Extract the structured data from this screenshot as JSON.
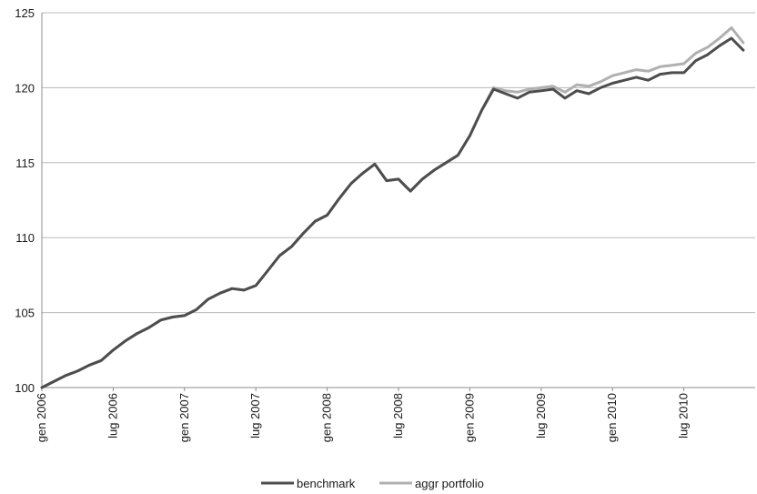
{
  "chart_data": {
    "type": "line",
    "title": "",
    "xlabel": "",
    "ylabel": "",
    "ylim": [
      100,
      125
    ],
    "yticks": [
      100,
      105,
      110,
      115,
      120,
      125
    ],
    "xlim": [
      "2006-01",
      "2010-12"
    ],
    "xtick_labels": [
      "gen 2006",
      "lug 2006",
      "gen 2007",
      "lug 2007",
      "gen 2008",
      "lug 2008",
      "gen 2009",
      "lug 2009",
      "gen 2010",
      "lug 2010"
    ],
    "grid": "horizontal",
    "legend": "bottom",
    "x": [
      "2006-01",
      "2006-02",
      "2006-03",
      "2006-04",
      "2006-05",
      "2006-06",
      "2006-07",
      "2006-08",
      "2006-09",
      "2006-10",
      "2006-11",
      "2006-12",
      "2007-01",
      "2007-02",
      "2007-03",
      "2007-04",
      "2007-05",
      "2007-06",
      "2007-07",
      "2007-08",
      "2007-09",
      "2007-10",
      "2007-11",
      "2007-12",
      "2008-01",
      "2008-02",
      "2008-03",
      "2008-04",
      "2008-05",
      "2008-06",
      "2008-07",
      "2008-08",
      "2008-09",
      "2008-10",
      "2008-11",
      "2008-12",
      "2009-01",
      "2009-02",
      "2009-03",
      "2009-04",
      "2009-05",
      "2009-06",
      "2009-07",
      "2009-08",
      "2009-09",
      "2009-10",
      "2009-11",
      "2009-12",
      "2010-01",
      "2010-02",
      "2010-03",
      "2010-04",
      "2010-05",
      "2010-06",
      "2010-07",
      "2010-08",
      "2010-09",
      "2010-10",
      "2010-11",
      "2010-12"
    ],
    "series": [
      {
        "name": "benchmark",
        "color": "#4d4d4d",
        "values": [
          100.0,
          100.4,
          100.8,
          101.1,
          101.5,
          101.8,
          102.5,
          103.1,
          103.6,
          104.0,
          104.5,
          104.7,
          104.8,
          105.2,
          105.9,
          106.3,
          106.6,
          106.5,
          106.8,
          107.8,
          108.8,
          109.4,
          110.3,
          111.1,
          111.5,
          112.6,
          113.6,
          114.3,
          114.9,
          113.8,
          113.9,
          113.1,
          113.9,
          114.5,
          115.0,
          115.5,
          116.8,
          118.5,
          119.9,
          119.6,
          119.3,
          119.7,
          119.8,
          119.9,
          119.3,
          119.8,
          119.6,
          120.0,
          120.3,
          120.5,
          120.7,
          120.5,
          120.9,
          121.0,
          121.0,
          121.8,
          122.2,
          122.8,
          123.3,
          122.5
        ]
      },
      {
        "name": "aggr portfolio",
        "color": "#b0b0b0",
        "values": [
          100.0,
          100.4,
          100.8,
          101.1,
          101.5,
          101.8,
          102.5,
          103.1,
          103.6,
          104.0,
          104.5,
          104.7,
          104.8,
          105.2,
          105.9,
          106.3,
          106.6,
          106.5,
          106.8,
          107.8,
          108.8,
          109.4,
          110.3,
          111.1,
          111.5,
          112.6,
          113.6,
          114.3,
          114.9,
          113.8,
          113.9,
          113.1,
          113.9,
          114.5,
          115.0,
          115.5,
          116.8,
          118.5,
          120.0,
          119.8,
          119.7,
          119.9,
          120.0,
          120.1,
          119.7,
          120.2,
          120.1,
          120.4,
          120.8,
          121.0,
          121.2,
          121.1,
          121.4,
          121.5,
          121.6,
          122.3,
          122.7,
          123.3,
          124.0,
          123.0
        ]
      }
    ]
  }
}
